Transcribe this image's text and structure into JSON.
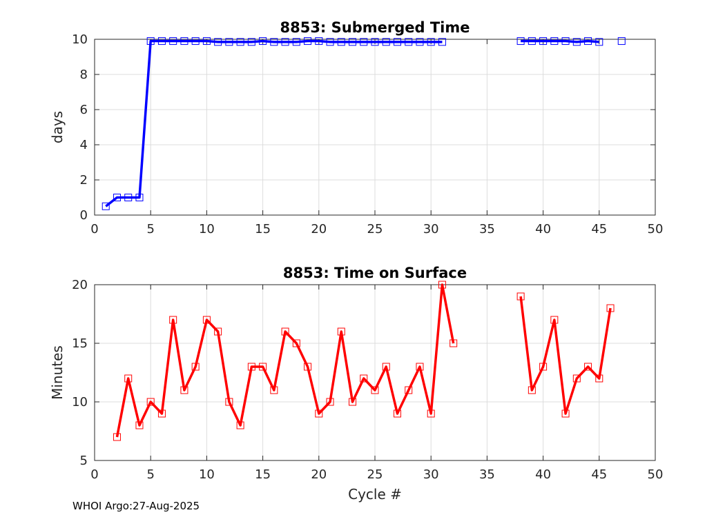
{
  "chart_data": [
    {
      "id": "submerged",
      "type": "line",
      "title": "8853: Submerged Time",
      "xlabel": "",
      "ylabel": "days",
      "xlim": [
        0,
        50
      ],
      "ylim": [
        0,
        10
      ],
      "xticks": [
        0,
        5,
        10,
        15,
        20,
        25,
        30,
        35,
        40,
        45,
        50
      ],
      "yticks": [
        0,
        2,
        4,
        6,
        8,
        10
      ],
      "grid": true,
      "color": "#0000ff",
      "x": [
        1,
        2,
        3,
        4,
        5,
        6,
        7,
        8,
        9,
        10,
        11,
        12,
        13,
        14,
        15,
        16,
        17,
        18,
        19,
        20,
        21,
        22,
        23,
        24,
        25,
        26,
        27,
        28,
        29,
        30,
        31,
        38,
        39,
        40,
        41,
        42,
        43,
        44,
        45,
        47
      ],
      "y": [
        0.5,
        1,
        1,
        1,
        9.9,
        9.9,
        9.9,
        9.9,
        9.9,
        9.9,
        9.85,
        9.85,
        9.85,
        9.85,
        9.9,
        9.85,
        9.85,
        9.85,
        9.9,
        9.9,
        9.85,
        9.85,
        9.85,
        9.85,
        9.85,
        9.85,
        9.85,
        9.85,
        9.85,
        9.85,
        9.85,
        9.9,
        9.9,
        9.9,
        9.9,
        9.9,
        9.85,
        9.9,
        9.85,
        9.9
      ],
      "line_segments": [
        [
          1,
          31
        ],
        [
          38,
          45
        ]
      ]
    },
    {
      "id": "surface",
      "type": "line",
      "title": "8853: Time on Surface",
      "xlabel": "Cycle #",
      "ylabel": "Minutes",
      "xlim": [
        0,
        50
      ],
      "ylim": [
        5,
        20
      ],
      "xticks": [
        0,
        5,
        10,
        15,
        20,
        25,
        30,
        35,
        40,
        45,
        50
      ],
      "yticks": [
        5,
        10,
        15,
        20
      ],
      "grid": true,
      "color": "#ff0000",
      "x": [
        2,
        3,
        4,
        5,
        6,
        7,
        8,
        9,
        10,
        11,
        12,
        13,
        14,
        15,
        16,
        17,
        18,
        19,
        20,
        21,
        22,
        23,
        24,
        25,
        26,
        27,
        28,
        29,
        30,
        31,
        32,
        38,
        39,
        40,
        41,
        42,
        43,
        44,
        45,
        46
      ],
      "y": [
        7,
        12,
        8,
        10,
        9,
        17,
        11,
        13,
        17,
        16,
        10,
        8,
        13,
        13,
        11,
        16,
        15,
        13,
        9,
        10,
        16,
        10,
        12,
        11,
        13,
        9,
        11,
        13,
        9,
        20,
        15,
        19,
        11,
        13,
        17,
        9,
        12,
        13,
        12,
        18
      ],
      "line_segments": [
        [
          2,
          32
        ],
        [
          38,
          46
        ]
      ]
    }
  ],
  "footer": "WHOI Argo:27-Aug-2025"
}
